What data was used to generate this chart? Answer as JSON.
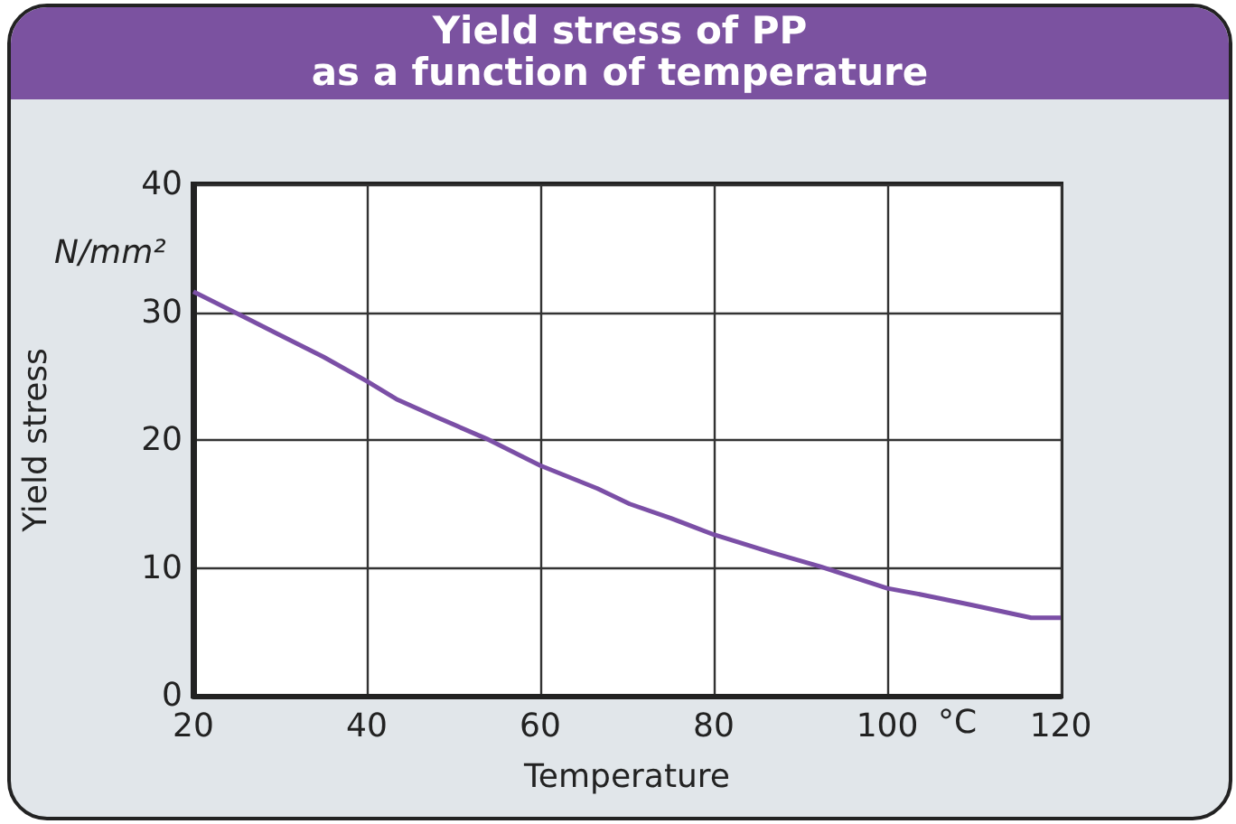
{
  "chart_data": {
    "type": "line",
    "title": "Yield stress of PP\nas a function of temperature",
    "xlabel": "Temperature",
    "ylabel": "Yield stress",
    "annotations": [
      "N/mm²",
      "°C"
    ],
    "x": [
      20,
      26.2,
      29.7,
      35,
      40,
      43.4,
      48,
      53.8,
      60,
      66.6,
      70.3,
      75,
      80,
      86.7,
      92.3,
      100,
      104,
      109.7,
      116.6,
      120
    ],
    "series": [
      {
        "color": "#7b4fa6",
        "values": [
          31.6,
          29.5,
          28.3,
          26.5,
          24.6,
          23.2,
          21.8,
          20.1,
          18.0,
          16.2,
          15.0,
          13.9,
          12.6,
          11.2,
          10.1,
          8.4,
          7.9,
          7.1,
          6.1,
          6.1
        ]
      }
    ],
    "xlim": [
      20,
      120
    ],
    "xticks": [
      20,
      40,
      60,
      80,
      100,
      120
    ],
    "ylim": [
      0,
      40
    ],
    "yticks": [
      0,
      10,
      20,
      30,
      40
    ],
    "grid": true,
    "marker": "none",
    "line_style": "solid"
  }
}
